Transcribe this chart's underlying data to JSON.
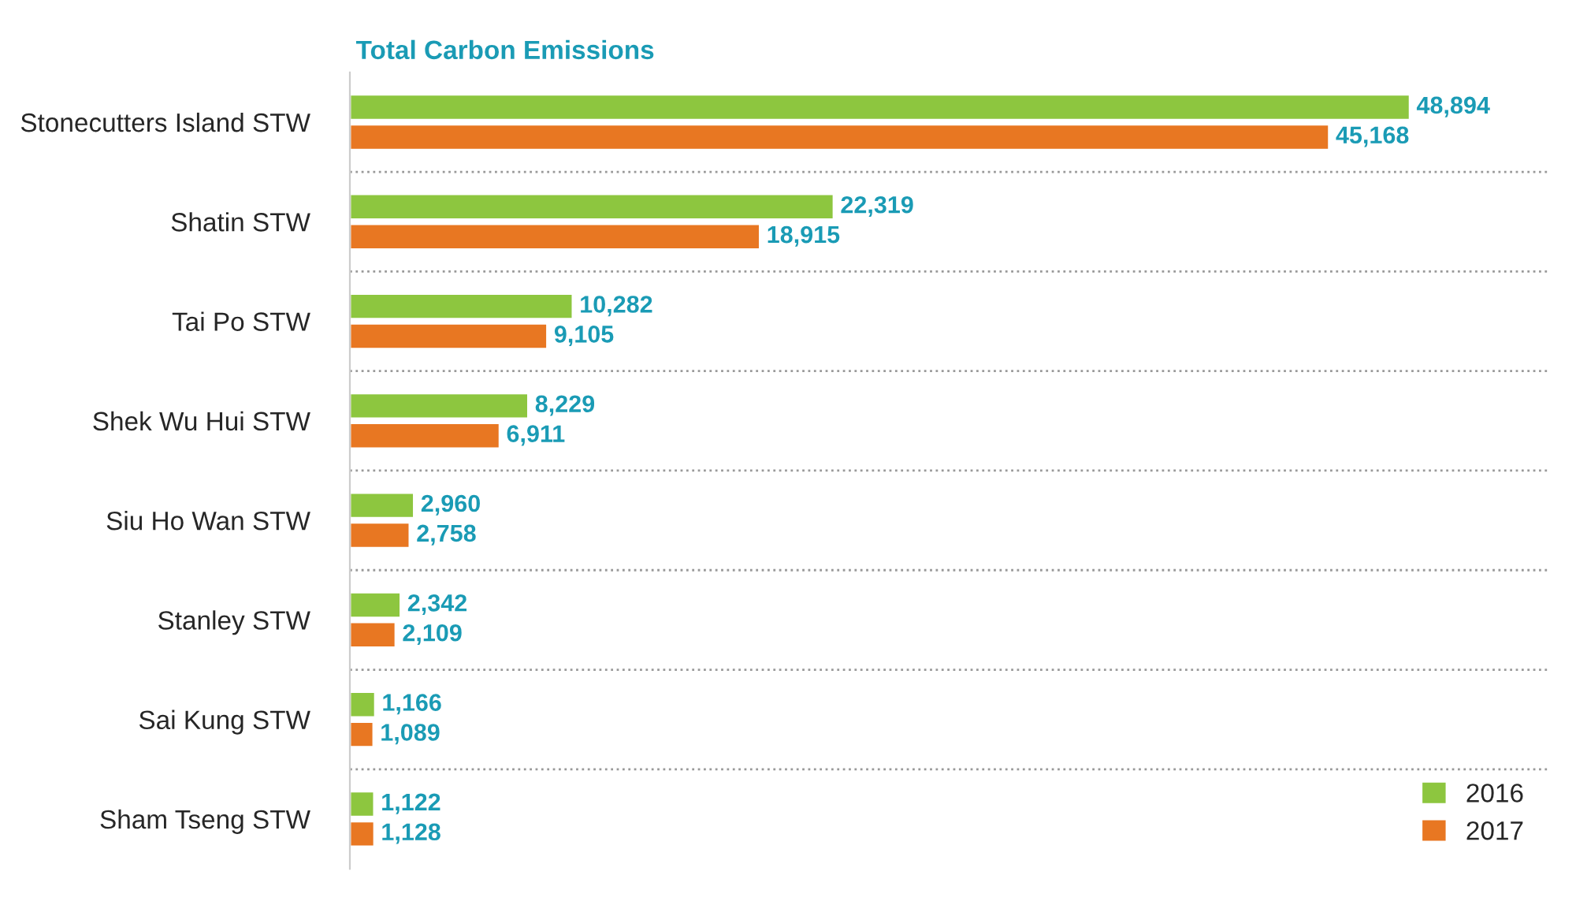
{
  "chart_data": {
    "type": "bar",
    "orientation": "horizontal",
    "title": "Total Carbon Emissions",
    "categories": [
      "Stonecutters Island STW",
      "Shatin STW",
      "Tai Po STW",
      "Shek Wu Hui STW",
      "Siu Ho Wan STW",
      "Stanley STW",
      "Sai Kung STW",
      "Sham Tseng STW"
    ],
    "series": [
      {
        "name": "2016",
        "color": "#8dc63f",
        "values": [
          48894,
          22319,
          10282,
          8229,
          2960,
          2342,
          1166,
          1122
        ],
        "value_labels": [
          "48,894",
          "22,319",
          "10,282",
          "8,229",
          "2,960",
          "2,342",
          "1,166",
          "1,122"
        ]
      },
      {
        "name": "2017",
        "color": "#e87722",
        "values": [
          45168,
          18915,
          9105,
          6911,
          2758,
          2109,
          1089,
          1128
        ],
        "value_labels": [
          "45,168",
          "18,915",
          "9,105",
          "6,911",
          "2,758",
          "2,109",
          "1,089",
          "1,128"
        ]
      }
    ],
    "grid": "y",
    "legend": "bottom right",
    "tick_labels": "y"
  }
}
